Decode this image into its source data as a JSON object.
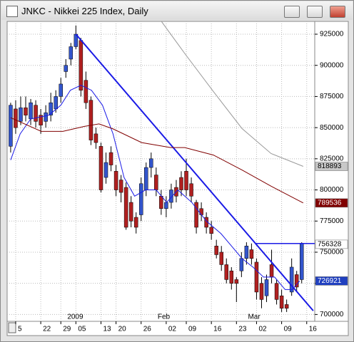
{
  "chart_data": {
    "type": "candlestick",
    "title": "JNKC - Nikkei 225 Index, Daily",
    "up_color": "#3355cc",
    "down_color": "#b02020",
    "x": [
      0,
      1,
      2,
      3,
      4,
      5,
      6,
      7,
      8,
      9,
      10,
      11,
      12,
      13,
      14,
      15,
      16,
      17,
      18,
      19,
      20,
      21,
      22,
      23,
      24,
      25,
      26,
      27,
      28,
      29,
      30,
      31,
      32,
      33,
      34,
      35,
      36,
      37,
      38,
      39,
      40,
      41,
      42,
      43,
      44,
      45,
      46,
      47,
      48,
      49,
      50,
      51,
      52,
      53,
      54,
      55,
      56,
      57,
      58
    ],
    "open": [
      835000,
      865000,
      855000,
      866000,
      857000,
      868000,
      860000,
      855000,
      860000,
      865000,
      875000,
      895000,
      905000,
      915000,
      920000,
      888000,
      872000,
      845000,
      835000,
      810000,
      830000,
      815000,
      808000,
      802000,
      790000,
      778000,
      780000,
      800000,
      818000,
      812000,
      795000,
      785000,
      790000,
      802000,
      810000,
      815000,
      805000,
      790000,
      785000,
      778000,
      770000,
      755000,
      750000,
      740000,
      735000,
      728000,
      735000,
      745000,
      752000,
      742000,
      725000,
      715000,
      740000,
      725000,
      715000,
      708000,
      718000,
      732000,
      728000
    ],
    "high": [
      870000,
      872000,
      875000,
      875000,
      873000,
      872000,
      865000,
      868000,
      878000,
      880000,
      890000,
      905000,
      918000,
      932000,
      922000,
      895000,
      875000,
      850000,
      838000,
      830000,
      835000,
      820000,
      812000,
      806000,
      795000,
      782000,
      810000,
      822000,
      830000,
      818000,
      800000,
      795000,
      805000,
      808000,
      815000,
      825000,
      810000,
      792000,
      790000,
      782000,
      775000,
      760000,
      755000,
      745000,
      738000,
      730000,
      750000,
      758000,
      757000,
      745000,
      730000,
      732000,
      752000,
      728000,
      720000,
      712000,
      745000,
      735000,
      758000
    ],
    "low": [
      830000,
      845000,
      852000,
      855000,
      852000,
      850000,
      845000,
      850000,
      855000,
      862000,
      870000,
      890000,
      900000,
      913000,
      875000,
      865000,
      836000,
      833000,
      798000,
      805000,
      815000,
      795000,
      790000,
      768000,
      770000,
      765000,
      775000,
      795000,
      810000,
      795000,
      780000,
      778000,
      785000,
      790000,
      795000,
      795000,
      790000,
      765000,
      775000,
      765000,
      760000,
      745000,
      735000,
      725000,
      720000,
      710000,
      730000,
      740000,
      740000,
      712000,
      705000,
      710000,
      725000,
      708000,
      702000,
      702000,
      715000,
      718000,
      725000
    ],
    "close": [
      868000,
      850000,
      866000,
      860000,
      870000,
      855000,
      852000,
      862000,
      870000,
      875000,
      885000,
      900000,
      915000,
      925000,
      880000,
      870000,
      840000,
      838000,
      800000,
      822000,
      820000,
      800000,
      798000,
      770000,
      775000,
      770000,
      805000,
      818000,
      825000,
      800000,
      785000,
      790000,
      800000,
      795000,
      800000,
      800000,
      795000,
      770000,
      780000,
      770000,
      765000,
      748000,
      740000,
      728000,
      725000,
      725000,
      745000,
      755000,
      745000,
      718000,
      712000,
      728000,
      730000,
      712000,
      705000,
      705000,
      738000,
      722000,
      757000
    ],
    "lines": [
      {
        "color": "#1a1ae6",
        "width": 2,
        "x": [
          13,
          60.3
        ],
        "y": [
          925000,
          703000
        ]
      },
      {
        "color": "#1a1ae6",
        "width": 1.5,
        "x": [
          48.7,
          60.6
        ],
        "y": [
          757000,
          757000
        ]
      },
      {
        "color": "#1a1ae6",
        "width": 1,
        "x": [
          0,
          1.9,
          4,
          7.6,
          10,
          11.9,
          14,
          16.1,
          18.3,
          20.4,
          22.6,
          24.7,
          26.9,
          29,
          31.1,
          33.3,
          36.1,
          39,
          41.9,
          44,
          46.1,
          48.3,
          50.4,
          52.6,
          54.7,
          56.1,
          57.6
        ],
        "y": [
          824000,
          845000,
          857000,
          860000,
          868000,
          880000,
          884000,
          880000,
          868000,
          845000,
          810000,
          795000,
          800000,
          800000,
          790000,
          800000,
          790000,
          775000,
          765000,
          755000,
          745000,
          738000,
          730000,
          730000,
          720000,
          720000,
          726921
        ]
      },
      {
        "color": "#800000",
        "width": 1,
        "x": [
          0,
          6.1,
          10.4,
          14.7,
          17.6,
          20.4,
          26.1,
          31.9,
          34.7,
          40.4,
          46.1,
          51.9,
          58.3
        ],
        "y": [
          858000,
          847000,
          847000,
          851000,
          853000,
          849000,
          838000,
          834000,
          834000,
          828000,
          816000,
          803000,
          789536
        ]
      },
      {
        "color": "#999999",
        "width": 1,
        "x": [
          30.1,
          34.7,
          40.4,
          46.1,
          51.9,
          58.3
        ],
        "y": [
          935000,
          909500,
          879000,
          849300,
          829200,
          818893
        ]
      }
    ],
    "price_labels": [
      {
        "value": 818893,
        "label": "818893",
        "bg": "#c8c8c8",
        "fg": "#000000"
      },
      {
        "value": 789536,
        "label": "789536",
        "bg": "#800000",
        "fg": "#ffffff"
      },
      {
        "value": 756328,
        "label": "756328",
        "bg": "#ffffff",
        "fg": "#000000"
      },
      {
        "value": 726921,
        "label": "726921",
        "bg": "#2040c0",
        "fg": "#ffffff"
      }
    ],
    "xlim": [
      -0.7,
      60.6
    ],
    "ylim": [
      694500,
      935300
    ],
    "yticks": [
      700000,
      725000,
      750000,
      775000,
      800000,
      825000,
      850000,
      875000,
      900000,
      925000
    ],
    "xticks": [
      {
        "value": 1,
        "label": "5"
      },
      {
        "value": 6,
        "label": "22"
      },
      {
        "value": 10,
        "label": "29"
      },
      {
        "value": 13,
        "label": "05"
      },
      {
        "value": 18,
        "label": "13"
      },
      {
        "value": 21,
        "label": "20"
      },
      {
        "value": 26,
        "label": "26"
      },
      {
        "value": 31,
        "label": "02"
      },
      {
        "value": 35,
        "label": "09"
      },
      {
        "value": 40,
        "label": "16"
      },
      {
        "value": 45,
        "label": "23"
      },
      {
        "value": 49,
        "label": "02"
      },
      {
        "value": 54,
        "label": "09"
      },
      {
        "value": 59,
        "label": "16"
      }
    ],
    "period_labels": [
      {
        "value": 13,
        "label": "2009"
      },
      {
        "value": 31,
        "label": "Feb"
      },
      {
        "value": 49,
        "label": "Mar"
      }
    ]
  }
}
